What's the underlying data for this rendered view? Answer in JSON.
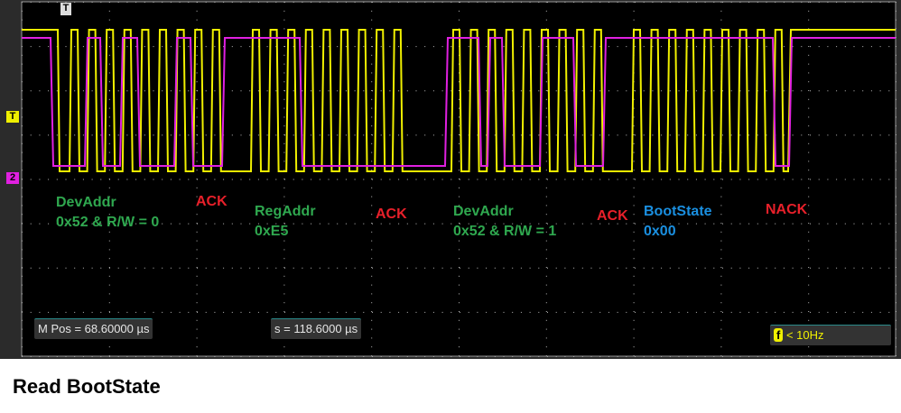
{
  "colors": {
    "ch1": "#f0f000",
    "ch2": "#e020e0",
    "green": "#2fa84f",
    "red": "#e8202a",
    "blue": "#1a8fe0"
  },
  "markers": {
    "trigger_top": "T",
    "trigger_level": "T",
    "ch2_ref": "2"
  },
  "annotations": [
    {
      "lines": [
        "DevAddr",
        "0x52 & R/W = 0"
      ],
      "color": "green"
    },
    {
      "lines": [
        "ACK"
      ],
      "color": "red"
    },
    {
      "lines": [
        "RegAddr",
        "0xE5"
      ],
      "color": "green"
    },
    {
      "lines": [
        "ACK"
      ],
      "color": "red"
    },
    {
      "lines": [
        "DevAddr",
        "0x52 & R/W = 1"
      ],
      "color": "green"
    },
    {
      "lines": [
        "ACK"
      ],
      "color": "red"
    },
    {
      "lines": [
        "BootState",
        "0x00"
      ],
      "color": "blue"
    },
    {
      "lines": [
        "NACK"
      ],
      "color": "red"
    }
  ],
  "readouts": {
    "mpos": "M Pos = 68.60000 µs",
    "delta": "s = 118.6000 µs",
    "freq_icon": "f",
    "freq": "< 10Hz"
  },
  "caption": "Read BootState"
}
